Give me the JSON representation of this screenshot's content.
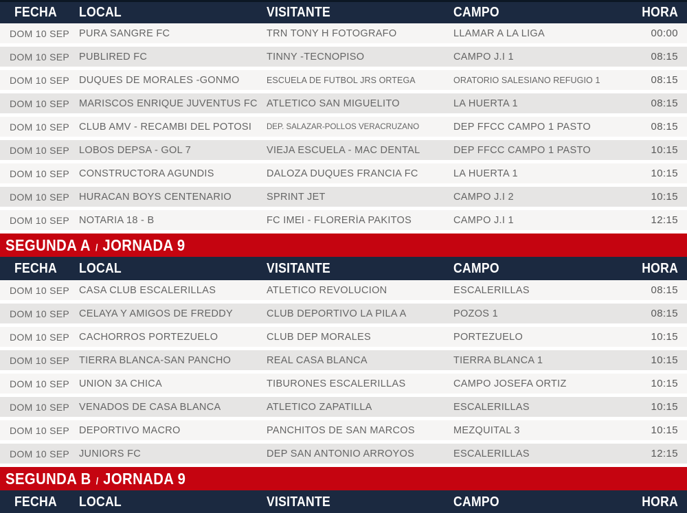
{
  "colors": {
    "header_bg": "#1b2940",
    "header_top_edge": "#0c1724",
    "banner_bg": "#c50410",
    "row_light": "#f6f5f4",
    "row_dark": "#e6e5e4",
    "row_text": "#656565",
    "header_text": "#ffffff",
    "banner_text": "#ffffff"
  },
  "table": {
    "columns": [
      {
        "key": "fecha",
        "label": "FECHA"
      },
      {
        "key": "local",
        "label": "LOCAL"
      },
      {
        "key": "visitante",
        "label": "VISITANTE"
      },
      {
        "key": "campo",
        "label": "CAMPO"
      },
      {
        "key": "hora",
        "label": "HORA"
      }
    ],
    "sections": [
      {
        "banner": null,
        "rows": [
          {
            "fecha": "DOM 10 SEP",
            "local": "PURA SANGRE FC",
            "visitante": "TRN TONY H FOTOGRAFO",
            "campo": "LLAMAR A LA LIGA",
            "hora": "00:00"
          },
          {
            "fecha": "DOM 10 SEP",
            "local": "PUBLIRED FC",
            "visitante": "TINNY -TECNOPISO",
            "campo": "CAMPO J.I 1",
            "hora": "08:15"
          },
          {
            "fecha": "DOM 10 SEP",
            "local": "DUQUES DE MORALES -GONMO",
            "visitante": "ESCUELA DE FUTBOL JRS ORTEGA",
            "campo": "ORATORIO SALESIANO REFUGIO 1",
            "hora": "08:15"
          },
          {
            "fecha": "DOM 10 SEP",
            "local": "MARISCOS ENRIQUE JUVENTUS FC",
            "visitante": "ATLETICO SAN MIGUELITO",
            "campo": "LA HUERTA 1",
            "hora": "08:15"
          },
          {
            "fecha": "DOM 10 SEP",
            "local": "CLUB AMV - RECAMBI DEL POTOSI",
            "visitante": "DEP. SALAZAR-POLLOS VERACRUZANO",
            "campo": "DEP FFCC CAMPO 1 PASTO",
            "hora": "08:15"
          },
          {
            "fecha": "DOM 10 SEP",
            "local": "LOBOS DEPSA - GOL 7",
            "visitante": "VIEJA ESCUELA - MAC DENTAL",
            "campo": "DEP FFCC CAMPO 1 PASTO",
            "hora": "10:15"
          },
          {
            "fecha": "DOM 10 SEP",
            "local": "CONSTRUCTORA AGUNDIS",
            "visitante": "DALOZA DUQUES FRANCIA FC",
            "campo": "LA HUERTA 1",
            "hora": "10:15"
          },
          {
            "fecha": "DOM 10 SEP",
            "local": "HURACAN BOYS CENTENARIO",
            "visitante": "SPRINT JET",
            "campo": "CAMPO J.I 2",
            "hora": "10:15"
          },
          {
            "fecha": "DOM 10 SEP",
            "local": "NOTARIA 18 - B",
            "visitante": "FC IMEI - FLORERÍA PAKITOS",
            "campo": "CAMPO J.I 1",
            "hora": "12:15"
          }
        ]
      },
      {
        "banner": {
          "division": "SEGUNDA A",
          "separator": "/",
          "jornada": "JORNADA 9"
        },
        "rows": [
          {
            "fecha": "DOM 10 SEP",
            "local": "CASA CLUB ESCALERILLAS",
            "visitante": "ATLETICO REVOLUCION",
            "campo": "ESCALERILLAS",
            "hora": "08:15"
          },
          {
            "fecha": "DOM 10 SEP",
            "local": "CELAYA Y AMIGOS DE FREDDY",
            "visitante": "CLUB DEPORTIVO LA PILA A",
            "campo": "POZOS 1",
            "hora": "08:15"
          },
          {
            "fecha": "DOM 10 SEP",
            "local": "CACHORROS PORTEZUELO",
            "visitante": "CLUB DEP MORALES",
            "campo": "PORTEZUELO",
            "hora": "10:15"
          },
          {
            "fecha": "DOM 10 SEP",
            "local": "TIERRA BLANCA-SAN PANCHO",
            "visitante": "REAL CASA BLANCA",
            "campo": "TIERRA BLANCA 1",
            "hora": "10:15"
          },
          {
            "fecha": "DOM 10 SEP",
            "local": "UNION 3A CHICA",
            "visitante": "TIBURONES ESCALERILLAS",
            "campo": "CAMPO JOSEFA ORTIZ",
            "hora": "10:15"
          },
          {
            "fecha": "DOM 10 SEP",
            "local": "VENADOS DE CASA BLANCA",
            "visitante": "ATLETICO ZAPATILLA",
            "campo": "ESCALERILLAS",
            "hora": "10:15"
          },
          {
            "fecha": "DOM 10 SEP",
            "local": "DEPORTIVO MACRO",
            "visitante": "PANCHITOS DE SAN MARCOS",
            "campo": "MEZQUITAL 3",
            "hora": "10:15"
          },
          {
            "fecha": "DOM 10 SEP",
            "local": "JUNIORS FC",
            "visitante": "DEP SAN ANTONIO ARROYOS",
            "campo": "ESCALERILLAS",
            "hora": "12:15"
          }
        ]
      },
      {
        "banner": {
          "division": "SEGUNDA B",
          "separator": "/",
          "jornada": "JORNADA 9"
        },
        "rows": []
      }
    ]
  }
}
